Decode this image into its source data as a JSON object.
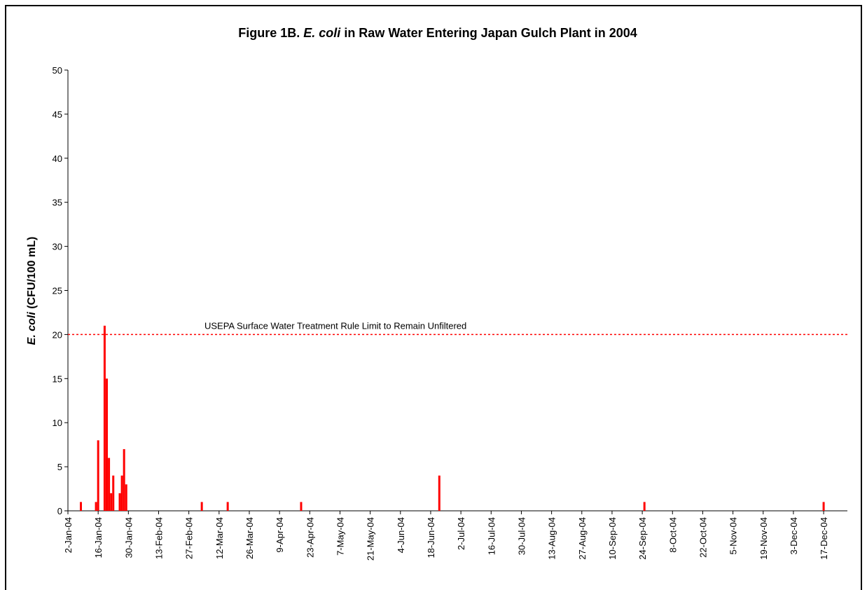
{
  "chart_data": {
    "type": "bar",
    "title": [
      "Figure 1B.",
      "E. coli",
      "in Raw Water Entering Japan Gulch Plant in 2004"
    ],
    "y_label": [
      "E. coli",
      "(CFU/100 mL)"
    ],
    "x": [
      "8-Jan-04",
      "15-Jan-04",
      "16-Jan-04",
      "19-Jan-04",
      "20-Jan-04",
      "21-Jan-04",
      "22-Jan-04",
      "23-Jan-04",
      "26-Jan-04",
      "27-Jan-04",
      "28-Jan-04",
      "29-Jan-04",
      "4-Mar-04",
      "16-Mar-04",
      "19-Apr-04",
      "22-Jun-04",
      "25-Sep-04",
      "17-Dec-04"
    ],
    "values": [
      1,
      1,
      8,
      21,
      15,
      6,
      2,
      4,
      2,
      4,
      7,
      3,
      1,
      1,
      1,
      4,
      1,
      1
    ],
    "color": "#ff0000",
    "xlim": [
      "2-Jan-04",
      "28-Dec-04"
    ],
    "xticks": [
      "2-Jan-04",
      "16-Jan-04",
      "30-Jan-04",
      "13-Feb-04",
      "27-Feb-04",
      "12-Mar-04",
      "26-Mar-04",
      "9-Apr-04",
      "23-Apr-04",
      "7-May-04",
      "21-May-04",
      "4-Jun-04",
      "18-Jun-04",
      "2-Jul-04",
      "16-Jul-04",
      "30-Jul-04",
      "13-Aug-04",
      "27-Aug-04",
      "10-Sep-04",
      "24-Sep-04",
      "8-Oct-04",
      "22-Oct-04",
      "5-Nov-04",
      "19-Nov-04",
      "3-Dec-04",
      "17-Dec-04"
    ],
    "ylim": [
      0,
      50
    ],
    "yticks": [
      0,
      5,
      10,
      15,
      20,
      25,
      30,
      35,
      40,
      45,
      50
    ],
    "reference_line": {
      "value": 20,
      "label": "USEPA Surface Water Treatment Rule Limit to Remain Unfiltered",
      "color": "#ff0000"
    }
  }
}
